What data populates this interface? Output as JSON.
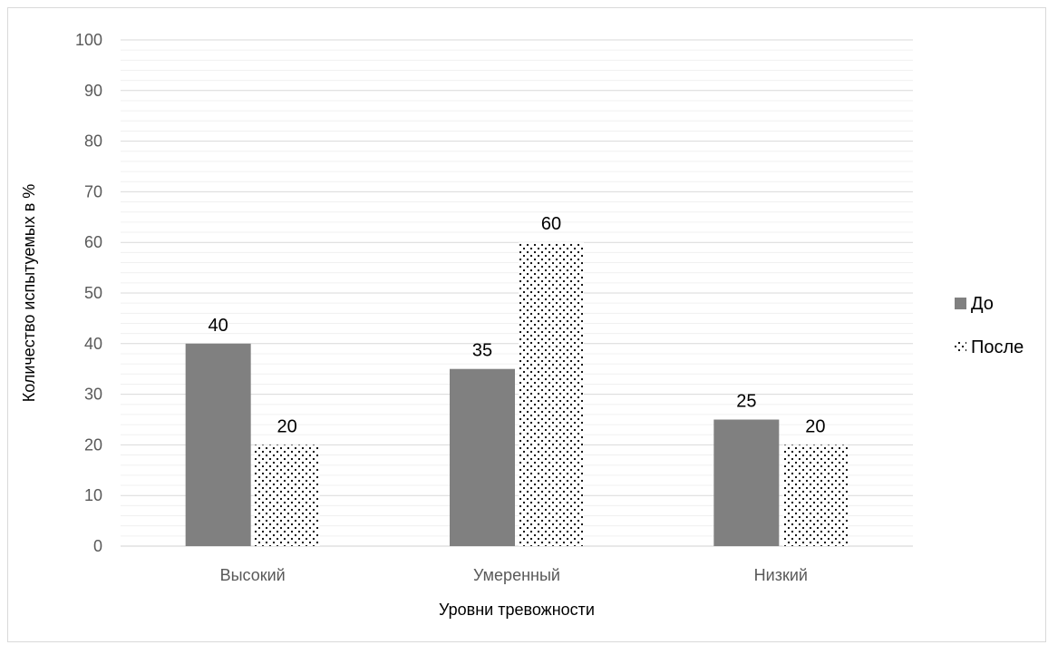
{
  "chart_data": {
    "type": "bar",
    "title": "",
    "xlabel": "Уровни тревожности",
    "ylabel": "Количество испытуемых в %",
    "ylim": [
      0,
      100
    ],
    "yticks": [
      "0",
      "10",
      "20",
      "30",
      "40",
      "50",
      "60",
      "70",
      "80",
      "90",
      "100"
    ],
    "categories": [
      "Высокий",
      "Умеренный",
      "Низкий"
    ],
    "series": [
      {
        "name": "До",
        "values": [
          40,
          35,
          25
        ],
        "color": "#808080",
        "fill": "solid"
      },
      {
        "name": "После",
        "values": [
          20,
          60,
          20
        ],
        "color": "#000000",
        "fill": "dotted"
      }
    ],
    "data_labels": true,
    "grid": true,
    "legend_position": "right"
  }
}
